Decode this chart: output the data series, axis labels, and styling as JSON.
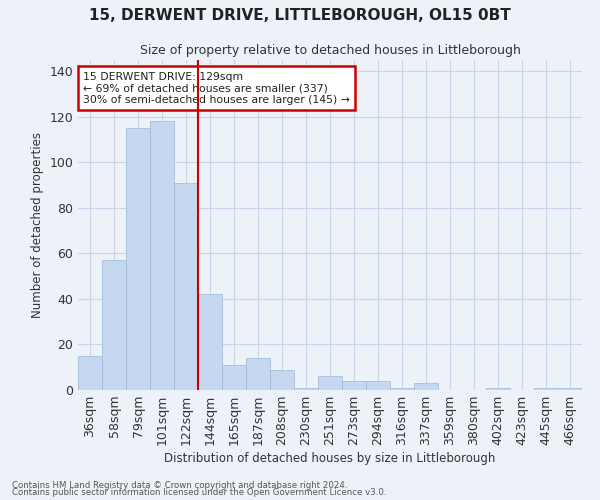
{
  "title": "15, DERWENT DRIVE, LITTLEBOROUGH, OL15 0BT",
  "subtitle": "Size of property relative to detached houses in Littleborough",
  "xlabel": "Distribution of detached houses by size in Littleborough",
  "ylabel": "Number of detached properties",
  "footnote1": "Contains HM Land Registry data © Crown copyright and database right 2024.",
  "footnote2": "Contains public sector information licensed under the Open Government Licence v3.0.",
  "bar_labels": [
    "36sqm",
    "58sqm",
    "79sqm",
    "101sqm",
    "122sqm",
    "144sqm",
    "165sqm",
    "187sqm",
    "208sqm",
    "230sqm",
    "251sqm",
    "273sqm",
    "294sqm",
    "316sqm",
    "337sqm",
    "359sqm",
    "380sqm",
    "402sqm",
    "423sqm",
    "445sqm",
    "466sqm"
  ],
  "bar_values": [
    15,
    57,
    115,
    118,
    91,
    42,
    11,
    14,
    9,
    1,
    6,
    4,
    4,
    1,
    3,
    0,
    0,
    1,
    0,
    1,
    1
  ],
  "bar_color": "#c5d8f0",
  "bar_edge_color": "#9ab8d8",
  "grid_color": "#c8d4e8",
  "background_color": "#edf2f9",
  "vline_x": 4.5,
  "vline_color": "#cc0000",
  "annotation_text": "15 DERWENT DRIVE: 129sqm\n← 69% of detached houses are smaller (337)\n30% of semi-detached houses are larger (145) →",
  "annotation_box_color": "#ffffff",
  "annotation_box_edge": "#cc0000",
  "ylim": [
    0,
    145
  ],
  "yticks": [
    0,
    20,
    40,
    60,
    80,
    100,
    120,
    140
  ]
}
